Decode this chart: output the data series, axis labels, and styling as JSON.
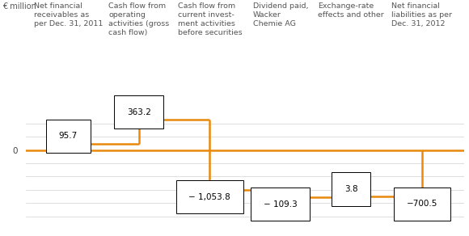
{
  "ylabel": "€ million",
  "categories": [
    "Net financial\nreceivables as\nper Dec. 31, 2011",
    "Cash flow from\noperating\nactivities (gross\ncash flow)",
    "Cash flow from\ncurrent invest-\nment activities\nbefore securities",
    "Dividend paid,\nWacker\nChemie AG",
    "Exchange-rate\neffects and other",
    "Net financial\nliabilities as per\nDec. 31, 2012"
  ],
  "values": [
    95.7,
    363.2,
    -1053.8,
    -109.3,
    3.8,
    -700.5
  ],
  "bar_color": "#E8890C",
  "background_color": "#ffffff",
  "grid_color": "#d0d0d0",
  "value_fontsize": 7.5,
  "header_fontsize": 6.8,
  "ylim": [
    -1150,
    550
  ],
  "figsize": [
    5.8,
    2.92
  ],
  "dpi": 100,
  "label_values": [
    "95.7",
    "363.2",
    "− 1,053.8",
    "− 109.3",
    "3.8",
    "−700.5"
  ],
  "label_above": [
    true,
    true,
    false,
    false,
    true,
    false
  ]
}
